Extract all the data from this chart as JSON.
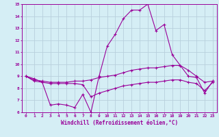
{
  "x": [
    0,
    1,
    2,
    3,
    4,
    5,
    6,
    7,
    8,
    9,
    10,
    11,
    12,
    13,
    14,
    15,
    16,
    17,
    18,
    19,
    20,
    21,
    22,
    23
  ],
  "line1": [
    9.0,
    8.8,
    8.5,
    6.6,
    6.7,
    6.6,
    6.4,
    7.5,
    6.0,
    9.0,
    11.5,
    12.5,
    13.8,
    14.5,
    14.5,
    15.0,
    12.8,
    13.3,
    10.8,
    9.9,
    9.0,
    8.9,
    7.6,
    8.6
  ],
  "line2": [
    9.0,
    8.7,
    8.6,
    8.5,
    8.5,
    8.5,
    8.6,
    8.6,
    8.7,
    8.9,
    9.0,
    9.1,
    9.3,
    9.5,
    9.6,
    9.7,
    9.7,
    9.8,
    9.9,
    9.9,
    9.5,
    9.0,
    8.5,
    8.6
  ],
  "line3": [
    9.0,
    8.6,
    8.5,
    8.4,
    8.4,
    8.4,
    8.4,
    8.3,
    7.3,
    7.6,
    7.8,
    8.0,
    8.2,
    8.3,
    8.4,
    8.5,
    8.5,
    8.6,
    8.7,
    8.7,
    8.5,
    8.4,
    7.8,
    8.5
  ],
  "line_color": "#990099",
  "bg_color": "#d5eef5",
  "grid_color": "#b8d0dc",
  "xlabel": "Windchill (Refroidissement éolien,°C)",
  "ylim": [
    6,
    15
  ],
  "xlim": [
    -0.5,
    23.5
  ],
  "yticks": [
    6,
    7,
    8,
    9,
    10,
    11,
    12,
    13,
    14,
    15
  ],
  "xticks": [
    0,
    1,
    2,
    3,
    4,
    5,
    6,
    7,
    8,
    9,
    10,
    11,
    12,
    13,
    14,
    15,
    16,
    17,
    18,
    19,
    20,
    21,
    22,
    23
  ]
}
